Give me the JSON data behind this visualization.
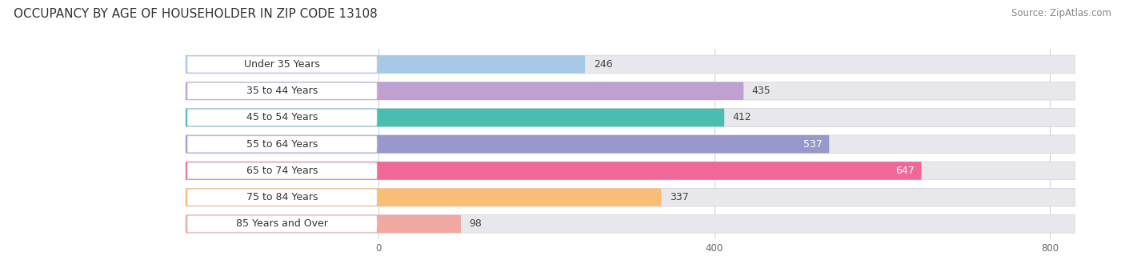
{
  "title": "OCCUPANCY BY AGE OF HOUSEHOLDER IN ZIP CODE 13108",
  "source": "Source: ZipAtlas.com",
  "categories": [
    "Under 35 Years",
    "35 to 44 Years",
    "45 to 54 Years",
    "55 to 64 Years",
    "65 to 74 Years",
    "75 to 84 Years",
    "85 Years and Over"
  ],
  "values": [
    246,
    435,
    412,
    537,
    647,
    337,
    98
  ],
  "bar_colors": [
    "#a8c8e8",
    "#c0a0d0",
    "#48bdb0",
    "#9898cc",
    "#f06898",
    "#f8be78",
    "#f0a8a0"
  ],
  "xlim_data": [
    0,
    800
  ],
  "xticks": [
    0,
    400,
    800
  ],
  "background_color": "#ffffff",
  "bar_bg_color": "#e8e8ec",
  "title_fontsize": 11,
  "source_fontsize": 8.5,
  "label_fontsize": 9,
  "value_fontsize": 9,
  "bar_height": 0.68,
  "value_colors": [
    "#444444",
    "#444444",
    "#444444",
    "#ffffff",
    "#ffffff",
    "#444444",
    "#444444"
  ]
}
